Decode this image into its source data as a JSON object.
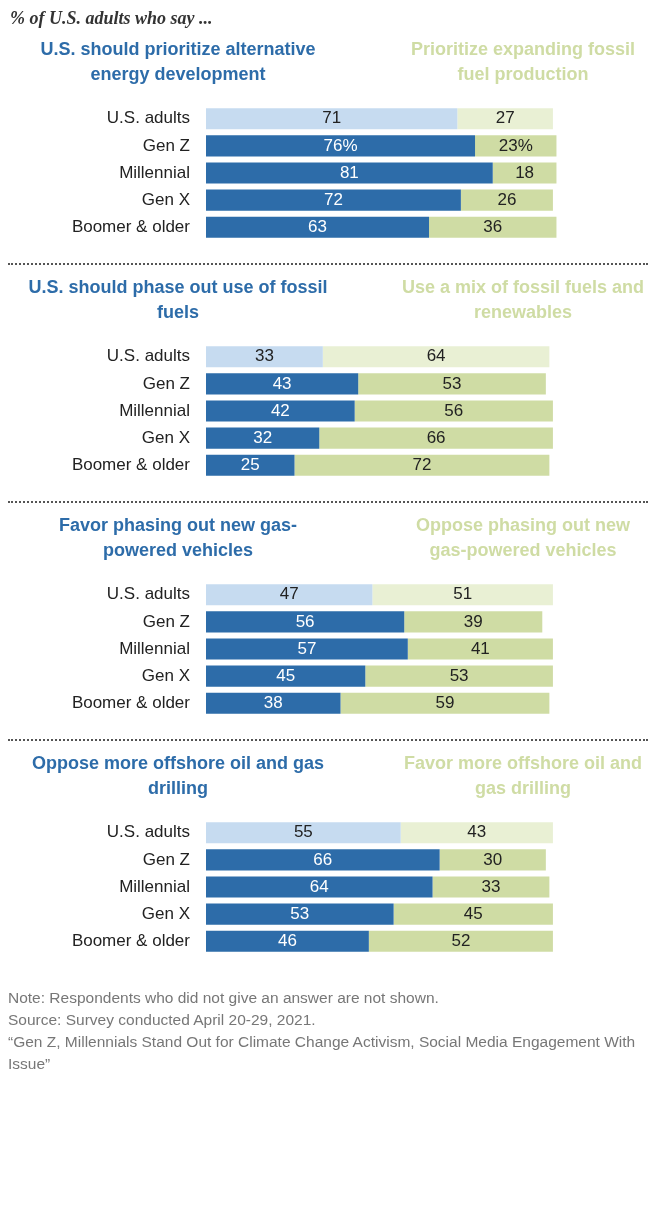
{
  "chart_data": [
    {
      "type": "bar",
      "title": "% of U.S. adults who say ...",
      "orientation": "horizontal",
      "stacked": true,
      "legend": false,
      "grid": false,
      "tick_labels": "y",
      "categories": [
        "U.S. adults",
        "Gen Z",
        "Millennial",
        "Gen X",
        "Boomer & older"
      ],
      "series": [
        {
          "name": "U.S. should prioritize alternative energy development",
          "color": "#2d6ca9",
          "colors": [
            "#c6dbf0",
            "#2d6ca9",
            "#2d6ca9",
            "#2d6ca9",
            "#2d6ca9"
          ],
          "values": [
            71,
            76,
            81,
            72,
            63
          ],
          "value_labels": [
            "71",
            "76%",
            "81",
            "72",
            "63"
          ]
        },
        {
          "name": "Prioritize expanding fossil fuel production",
          "color": "#cfdca4",
          "colors": [
            "#e9f0d4",
            "#cfdca4",
            "#cfdca4",
            "#cfdca4",
            "#cfdca4"
          ],
          "values": [
            27,
            23,
            18,
            26,
            36
          ],
          "value_labels": [
            "27",
            "23%",
            "18",
            "26",
            "36"
          ]
        }
      ]
    },
    {
      "type": "bar",
      "orientation": "horizontal",
      "stacked": true,
      "legend": false,
      "grid": false,
      "tick_labels": "y",
      "data_labels": true,
      "categories": [
        "U.S. adults",
        "Gen Z",
        "Millennial",
        "Gen X",
        "Boomer & older"
      ],
      "series": [
        {
          "name": "U.S. should phase out use of fossil fuels",
          "color": "#2d6ca9",
          "colors": [
            "#c6dbf0",
            "#2d6ca9",
            "#2d6ca9",
            "#2d6ca9",
            "#2d6ca9"
          ],
          "values": [
            33,
            43,
            42,
            32,
            25
          ]
        },
        {
          "name": "Use a mix of fossil fuels and renewables",
          "color": "#cfdca4",
          "colors": [
            "#e9f0d4",
            "#cfdca4",
            "#cfdca4",
            "#cfdca4",
            "#cfdca4"
          ],
          "values": [
            64,
            53,
            56,
            66,
            72
          ]
        }
      ]
    },
    {
      "type": "bar",
      "orientation": "horizontal",
      "stacked": true,
      "legend": false,
      "grid": false,
      "tick_labels": "y",
      "data_labels": true,
      "categories": [
        "U.S. adults",
        "Gen Z",
        "Millennial",
        "Gen X",
        "Boomer & older"
      ],
      "series": [
        {
          "name": "Favor phasing out new gas-powered vehicles",
          "color": "#2d6ca9",
          "colors": [
            "#c6dbf0",
            "#2d6ca9",
            "#2d6ca9",
            "#2d6ca9",
            "#2d6ca9"
          ],
          "values": [
            47,
            56,
            57,
            45,
            38
          ]
        },
        {
          "name": "Oppose phasing out new gas-powered vehicles",
          "color": "#cfdca4",
          "colors": [
            "#e9f0d4",
            "#cfdca4",
            "#cfdca4",
            "#cfdca4",
            "#cfdca4"
          ],
          "values": [
            51,
            39,
            41,
            53,
            59
          ]
        }
      ]
    },
    {
      "type": "bar",
      "orientation": "horizontal",
      "stacked": true,
      "legend": false,
      "grid": false,
      "tick_labels": "y",
      "data_labels": true,
      "categories": [
        "U.S. adults",
        "Gen Z",
        "Millennial",
        "Gen X",
        "Boomer & older"
      ],
      "series": [
        {
          "name": "Oppose more offshore oil and gas drilling",
          "color": "#2d6ca9",
          "colors": [
            "#c6dbf0",
            "#2d6ca9",
            "#2d6ca9",
            "#2d6ca9",
            "#2d6ca9"
          ],
          "values": [
            55,
            66,
            64,
            53,
            46
          ]
        },
        {
          "name": "Favor more offshore oil and gas drilling",
          "color": "#cfdca4",
          "colors": [
            "#e9f0d4",
            "#cfdca4",
            "#cfdca4",
            "#cfdca4",
            "#cfdca4"
          ],
          "values": [
            43,
            30,
            33,
            45,
            52
          ]
        }
      ],
      "annotations": [
        "Note: Respondents who did not give an answer are not shown.",
        "Source: Survey conducted April 20-29, 2021.",
        "“Gen Z, Millennials Stand Out for Climate Change Activism, Social Media Engagement With Issue”"
      ]
    }
  ]
}
